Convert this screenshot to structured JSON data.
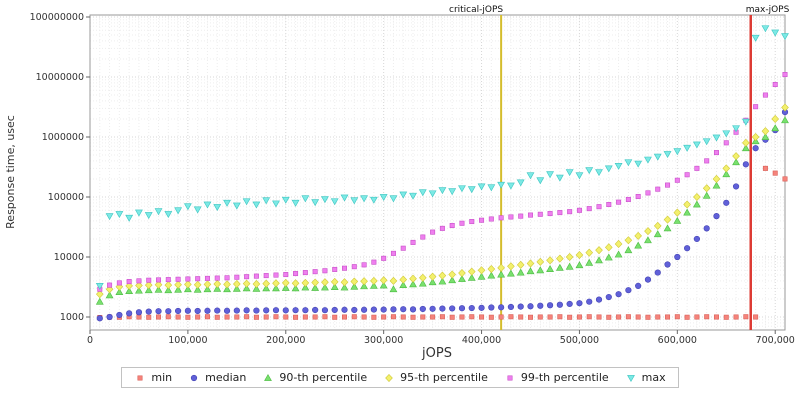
{
  "chart_data": {
    "type": "scatter",
    "title": "",
    "x_label": "jOPS",
    "y_label": "Response time, usec",
    "y_scale": "log",
    "xlim": [
      0,
      710000
    ],
    "ylim": [
      1000,
      100000000
    ],
    "grid": true,
    "legend_position": "bottom",
    "x_ticks": [
      {
        "v": 0,
        "label": "0"
      },
      {
        "v": 100000,
        "label": "100,000"
      },
      {
        "v": 200000,
        "label": "200,000"
      },
      {
        "v": 300000,
        "label": "300,000"
      },
      {
        "v": 400000,
        "label": "400,000"
      },
      {
        "v": 500000,
        "label": "500,000"
      },
      {
        "v": 600000,
        "label": "600,000"
      },
      {
        "v": 700000,
        "label": "700,000"
      }
    ],
    "y_ticks": [
      {
        "v": 1000,
        "label": "1000"
      },
      {
        "v": 10000,
        "label": "10000"
      },
      {
        "v": 100000,
        "label": "100000"
      },
      {
        "v": 1000000,
        "label": "1000000"
      },
      {
        "v": 10000000,
        "label": "10000000"
      },
      {
        "v": 100000000,
        "label": "100000000"
      }
    ],
    "vlines": [
      {
        "label": "critical-jOPS",
        "x": 420000,
        "color": "#d4bd2c",
        "width": 2
      },
      {
        "label": "max-jOPS",
        "x": 675000,
        "color": "#dd3a33",
        "width": 2.5
      }
    ],
    "x": [
      10000,
      20000,
      30000,
      40000,
      50000,
      60000,
      70000,
      80000,
      90000,
      100000,
      110000,
      120000,
      130000,
      140000,
      150000,
      160000,
      170000,
      180000,
      190000,
      200000,
      210000,
      220000,
      230000,
      240000,
      250000,
      260000,
      270000,
      280000,
      290000,
      300000,
      310000,
      320000,
      330000,
      340000,
      350000,
      360000,
      370000,
      380000,
      390000,
      400000,
      410000,
      420000,
      430000,
      440000,
      450000,
      460000,
      470000,
      480000,
      490000,
      500000,
      510000,
      520000,
      530000,
      540000,
      550000,
      560000,
      570000,
      580000,
      590000,
      600000,
      610000,
      620000,
      630000,
      640000,
      650000,
      660000,
      670000,
      680000,
      690000,
      700000,
      710000
    ],
    "series": [
      {
        "name": "min",
        "shape": "square",
        "color": "#f5837b",
        "stroke": "#d95f57",
        "values": [
          980,
          1000,
          990,
          1010,
          1000,
          990,
          1000,
          1010,
          1000,
          990,
          1000,
          1010,
          990,
          1000,
          1000,
          1010,
          990,
          1000,
          1010,
          1000,
          990,
          1000,
          1000,
          1010,
          990,
          1000,
          1010,
          1000,
          990,
          1000,
          1010,
          1000,
          990,
          1000,
          1000,
          1010,
          990,
          1000,
          1010,
          1000,
          990,
          1000,
          1010,
          1000,
          990,
          1000,
          1000,
          1010,
          990,
          1000,
          1010,
          1000,
          990,
          1000,
          1010,
          1000,
          990,
          1000,
          1000,
          1010,
          990,
          1000,
          1010,
          1000,
          990,
          1000,
          1010,
          1000,
          300000,
          250000,
          200000
        ]
      },
      {
        "name": "median",
        "shape": "circle",
        "color": "#6060d8",
        "stroke": "#4444b4",
        "values": [
          950,
          1000,
          1080,
          1150,
          1200,
          1230,
          1250,
          1250,
          1260,
          1270,
          1260,
          1270,
          1280,
          1270,
          1280,
          1290,
          1280,
          1290,
          1300,
          1290,
          1300,
          1300,
          1310,
          1300,
          1310,
          1320,
          1310,
          1320,
          1330,
          1330,
          1340,
          1350,
          1340,
          1360,
          1370,
          1380,
          1390,
          1400,
          1410,
          1420,
          1440,
          1450,
          1470,
          1490,
          1510,
          1540,
          1570,
          1600,
          1650,
          1700,
          1800,
          1950,
          2150,
          2400,
          2800,
          3300,
          4200,
          5500,
          7500,
          10000,
          14000,
          20000,
          30000,
          48000,
          80000,
          150000,
          350000,
          650000,
          900000,
          1300000,
          2600000
        ]
      },
      {
        "name": "90-th percentile",
        "shape": "triangle-up",
        "color": "#79e06e",
        "stroke": "#4cbb42",
        "values": [
          1800,
          2300,
          2600,
          2700,
          2750,
          2800,
          2850,
          2800,
          2850,
          2900,
          2850,
          2900,
          2950,
          2900,
          2950,
          3000,
          2950,
          3000,
          3000,
          3050,
          3000,
          3100,
          3050,
          3100,
          3150,
          3100,
          3200,
          3250,
          3300,
          3350,
          2900,
          3400,
          3500,
          3600,
          3800,
          3900,
          4100,
          4300,
          4500,
          4700,
          4900,
          5100,
          5300,
          5500,
          5800,
          6000,
          6300,
          6600,
          6900,
          7300,
          8000,
          8800,
          9800,
          11000,
          13000,
          15500,
          19000,
          24000,
          30000,
          40000,
          55000,
          75000,
          105000,
          155000,
          240000,
          380000,
          650000,
          850000,
          1000000,
          1400000,
          1900000
        ]
      },
      {
        "name": "95-th percentile",
        "shape": "diamond",
        "color": "#f3f06c",
        "stroke": "#cfc83a",
        "values": [
          2400,
          2900,
          3200,
          3300,
          3350,
          3400,
          3450,
          3400,
          3450,
          3500,
          3450,
          3500,
          3550,
          3500,
          3550,
          3600,
          3550,
          3600,
          3650,
          3700,
          3650,
          3700,
          3750,
          3800,
          3850,
          3800,
          3900,
          3950,
          4000,
          4100,
          4000,
          4200,
          4350,
          4500,
          4700,
          4900,
          5100,
          5400,
          5700,
          6000,
          6300,
          6600,
          7000,
          7400,
          7800,
          8300,
          8800,
          9400,
          10000,
          10800,
          11800,
          13000,
          14500,
          16500,
          19000,
          22500,
          27000,
          33000,
          42000,
          55000,
          75000,
          100000,
          140000,
          200000,
          300000,
          480000,
          800000,
          1000000,
          1250000,
          2000000,
          3100000
        ]
      },
      {
        "name": "99-th percentile",
        "shape": "square",
        "color": "#ee7fee",
        "stroke": "#c94fc9",
        "values": [
          2900,
          3400,
          3700,
          3900,
          4000,
          4100,
          4150,
          4200,
          4250,
          4300,
          4350,
          4400,
          4450,
          4500,
          4600,
          4700,
          4800,
          4900,
          5000,
          5100,
          5300,
          5500,
          5700,
          5900,
          6200,
          6500,
          6900,
          7400,
          8200,
          9500,
          11500,
          14000,
          17500,
          21500,
          26000,
          30000,
          33500,
          36500,
          39000,
          41000,
          43000,
          45000,
          46500,
          48000,
          50000,
          51500,
          53000,
          55000,
          57000,
          60000,
          64000,
          69000,
          75000,
          82000,
          91000,
          102000,
          117000,
          135000,
          158000,
          190000,
          235000,
          300000,
          400000,
          550000,
          800000,
          1200000,
          1900000,
          3200000,
          5000000,
          7500000,
          11000000
        ]
      },
      {
        "name": "max",
        "shape": "triangle-down",
        "color": "#7ce9e5",
        "stroke": "#3cc6c1",
        "values": [
          3300,
          48000,
          52000,
          45000,
          55000,
          50000,
          58000,
          52000,
          60000,
          70000,
          62000,
          75000,
          68000,
          80000,
          72000,
          85000,
          75000,
          88000,
          78000,
          90000,
          80000,
          95000,
          82000,
          92000,
          85000,
          98000,
          88000,
          95000,
          90000,
          100000,
          95000,
          110000,
          105000,
          120000,
          115000,
          130000,
          125000,
          140000,
          135000,
          150000,
          145000,
          160000,
          155000,
          175000,
          230000,
          190000,
          240000,
          210000,
          260000,
          230000,
          280000,
          260000,
          300000,
          330000,
          380000,
          360000,
          420000,
          470000,
          520000,
          580000,
          660000,
          750000,
          850000,
          980000,
          1150000,
          1400000,
          1800000,
          45000000,
          65000000,
          55000000,
          48000000
        ]
      }
    ]
  }
}
